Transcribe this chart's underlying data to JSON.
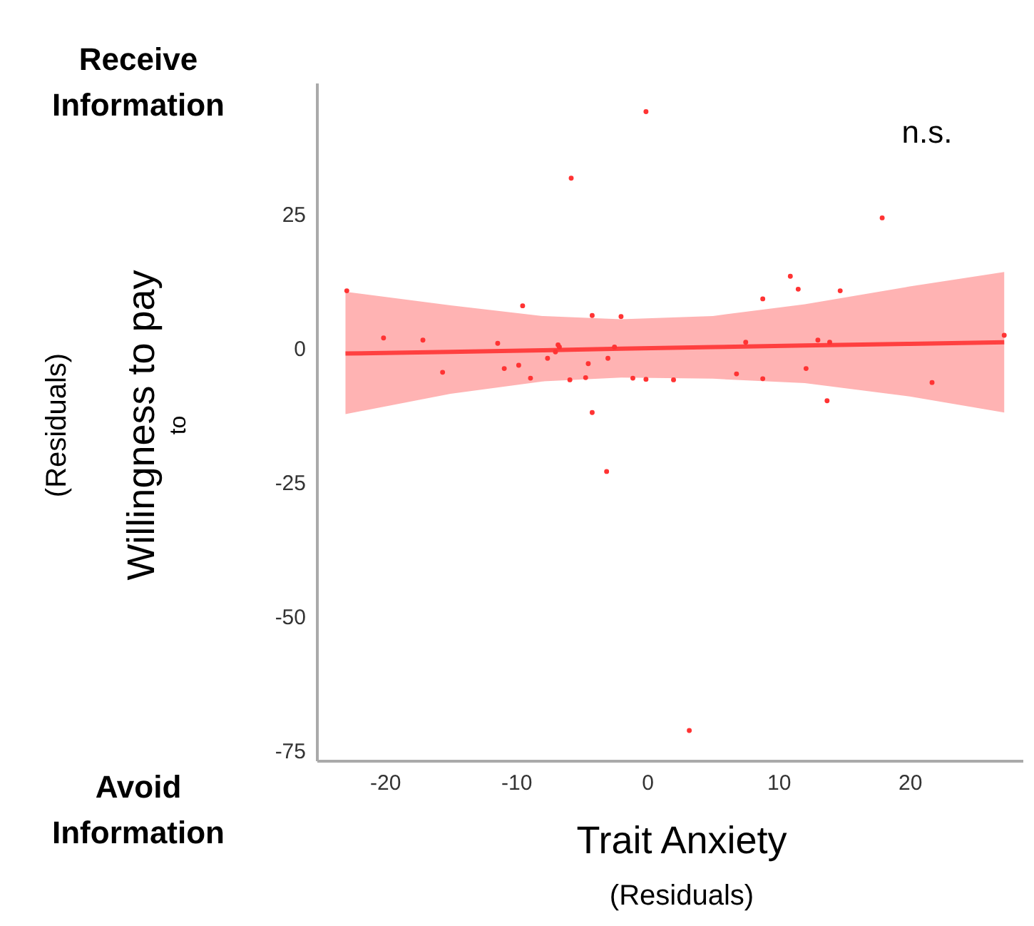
{
  "chart_data": {
    "type": "scatter",
    "xlabel": "Trait Anxiety\n(Residuals)",
    "ylabel": "(Residuals)\nWillingness to pay\nto",
    "annotations": [
      "Receive\nInformation",
      "Avoid\nInformation",
      "n.s."
    ],
    "xlim": [
      -25.2,
      28.6
    ],
    "ylim": [
      -76.9,
      49.5
    ],
    "xticks": [
      -20,
      -10,
      0,
      10,
      20
    ],
    "yticks": [
      25,
      0,
      -25,
      -50,
      -75
    ],
    "grid": false,
    "series": [
      {
        "type": "line",
        "color": "#ff4040",
        "x": [
          -23,
          -15,
          -8,
          -2,
          5,
          12,
          20,
          27.2
        ],
        "values": [
          -1.0,
          -0.7,
          -0.4,
          -0.1,
          0.2,
          0.5,
          0.8,
          1.1
        ],
        "lower": [
          -12.3,
          -8.5,
          -6.2,
          -5.5,
          -5.7,
          -6.5,
          -9.0,
          -12.0
        ],
        "upper": [
          10.5,
          8.0,
          6.0,
          5.4,
          6.0,
          8.2,
          11.5,
          14.2
        ]
      },
      {
        "color": "#ff3333",
        "x": [
          -22.9,
          -20.1,
          -17.1,
          -15.6,
          -11.4,
          -10.9,
          -9.5,
          -9.8,
          -8.9,
          -7.6,
          -7.0,
          -6.8,
          -6.7,
          -5.9,
          -5.8,
          -4.7,
          -4.5,
          -4.2,
          -4.2,
          -3.0,
          -2.5,
          -2.0,
          -1.1,
          -0.1,
          -0.1,
          2.0,
          6.8,
          7.5,
          8.8,
          8.8,
          10.9,
          11.5,
          12.1,
          13.0,
          13.9,
          13.7,
          14.7,
          17.9,
          21.7,
          27.2,
          -3.1,
          3.2
        ],
        "values": [
          10.7,
          1.9,
          1.5,
          -4.5,
          0.9,
          -3.8,
          7.9,
          -3.2,
          -5.6,
          -1.9,
          -0.7,
          0.6,
          0.2,
          -5.9,
          31.7,
          -5.5,
          -2.9,
          -12.0,
          6.1,
          -1.9,
          0.2,
          5.9,
          -5.6,
          -5.8,
          44.1,
          -5.9,
          -4.8,
          1.1,
          9.2,
          -5.7,
          13.4,
          11.0,
          -3.8,
          1.5,
          1.1,
          -9.8,
          10.7,
          24.3,
          -6.4,
          2.4,
          -23.0,
          -71.3
        ]
      }
    ]
  }
}
